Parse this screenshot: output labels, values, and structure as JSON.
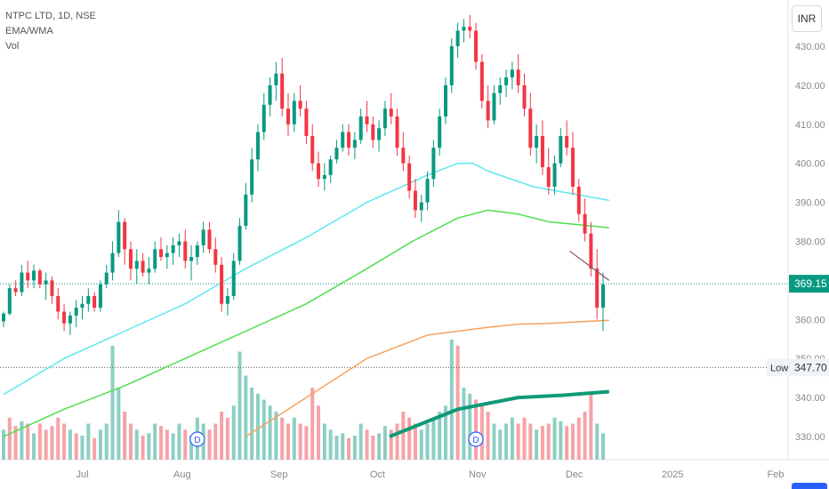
{
  "chart_data": {
    "type": "candlestick",
    "legend": {
      "symbol": "NTPC LTD, 1D, NSE",
      "indicator": "EMA/WMA",
      "volume": "Vol"
    },
    "currency": "INR",
    "y_ticks": [
      330,
      340,
      350,
      360,
      370,
      380,
      390,
      400,
      410,
      420,
      430
    ],
    "ylim": [
      326,
      438
    ],
    "x_ticks": [
      "Jul",
      "Aug",
      "Sep",
      "Oct",
      "Nov",
      "Dec",
      "2025",
      "Feb"
    ],
    "last_price": {
      "value": 369.15,
      "label": "369.15",
      "color": "#089981"
    },
    "low_marker": {
      "tag": "Low",
      "value": 347.7,
      "label": "347.70"
    },
    "colors": {
      "up": "#089981",
      "down": "#f23645",
      "vol_up": "#8ccfc3",
      "vol_down": "#f5a3a8",
      "ema_cyan": "#5ee8ec",
      "ema_green": "#4ce04c",
      "ema_orange": "#f7a25c",
      "wma_teal": "#0f9a76",
      "trendline": "#8b5a70"
    },
    "trendline": {
      "from": [
        374,
        377.5
      ],
      "to": [
        400,
        370
      ]
    },
    "dividend_markers": [
      {
        "label": "D",
        "index": 128
      },
      {
        "label": "D",
        "index": 312
      }
    ],
    "series": [
      {
        "name": "EMA cyan",
        "points": [
          [
            0,
            340.8
          ],
          [
            40,
            350
          ],
          [
            80,
            357
          ],
          [
            120,
            364
          ],
          [
            160,
            373
          ],
          [
            200,
            381
          ],
          [
            240,
            390
          ],
          [
            280,
            397
          ],
          [
            300,
            400
          ],
          [
            310,
            400
          ],
          [
            320,
            398
          ],
          [
            350,
            394
          ],
          [
            400,
            390.5
          ]
        ]
      },
      {
        "name": "EMA green",
        "points": [
          [
            0,
            330
          ],
          [
            40,
            337
          ],
          [
            80,
            343
          ],
          [
            120,
            350
          ],
          [
            160,
            357
          ],
          [
            200,
            364
          ],
          [
            240,
            373
          ],
          [
            270,
            380
          ],
          [
            300,
            386
          ],
          [
            320,
            388
          ],
          [
            340,
            387
          ],
          [
            360,
            385
          ],
          [
            400,
            383.5
          ]
        ]
      },
      {
        "name": "EMA orange",
        "points": [
          [
            160,
            330
          ],
          [
            200,
            340
          ],
          [
            240,
            350
          ],
          [
            280,
            356
          ],
          [
            320,
            358
          ],
          [
            340,
            358.8
          ],
          [
            360,
            359
          ],
          [
            400,
            359.8
          ]
        ]
      },
      {
        "name": "WMA teal",
        "points": [
          [
            255,
            330
          ],
          [
            300,
            337
          ],
          [
            340,
            340
          ],
          [
            370,
            340.6
          ],
          [
            400,
            341.5
          ]
        ]
      }
    ],
    "candles": [
      [
        0,
        359.5,
        362,
        358,
        361.5
      ],
      [
        4,
        361.5,
        369,
        361,
        368
      ],
      [
        8,
        368,
        370,
        366,
        367
      ],
      [
        12,
        367,
        374,
        366,
        372
      ],
      [
        16,
        372,
        375,
        368,
        370
      ],
      [
        20,
        370,
        374,
        368,
        372.5
      ],
      [
        24,
        372.5,
        373,
        368,
        369
      ],
      [
        28,
        369,
        372,
        365,
        370
      ],
      [
        32,
        370,
        371,
        364,
        366
      ],
      [
        36,
        366,
        368,
        360,
        362
      ],
      [
        40,
        362,
        364,
        357,
        359
      ],
      [
        44,
        359,
        362,
        356,
        361
      ],
      [
        48,
        361,
        365,
        358,
        363
      ],
      [
        52,
        363,
        366,
        360,
        364
      ],
      [
        56,
        364,
        368,
        362,
        366
      ],
      [
        60,
        366,
        367,
        362,
        363
      ],
      [
        64,
        363,
        370,
        362,
        369
      ],
      [
        68,
        369,
        374,
        368,
        372
      ],
      [
        72,
        372,
        380,
        370,
        377
      ],
      [
        76,
        377,
        388,
        376,
        385
      ],
      [
        80,
        385,
        386,
        374,
        378
      ],
      [
        84,
        378,
        380,
        370,
        373
      ],
      [
        88,
        373,
        378,
        369,
        375
      ],
      [
        92,
        375,
        377,
        371,
        372
      ],
      [
        96,
        372,
        376,
        369,
        373
      ],
      [
        100,
        373,
        380,
        372,
        378
      ],
      [
        104,
        378,
        381,
        375,
        376
      ],
      [
        108,
        376,
        379,
        373,
        377
      ],
      [
        112,
        377,
        381,
        374,
        379
      ],
      [
        116,
        379,
        382,
        376,
        380
      ],
      [
        120,
        380,
        383,
        373,
        375
      ],
      [
        124,
        375,
        379,
        370,
        376
      ],
      [
        128,
        376,
        380,
        374,
        379
      ],
      [
        132,
        379,
        385,
        377,
        383
      ],
      [
        136,
        383,
        385,
        377,
        378
      ],
      [
        140,
        378,
        381,
        372,
        374
      ],
      [
        144,
        374,
        376,
        362,
        364
      ],
      [
        148,
        364,
        368,
        361,
        366
      ],
      [
        152,
        366,
        377,
        365,
        375
      ],
      [
        156,
        375,
        386,
        374,
        384
      ],
      [
        160,
        384,
        395,
        383,
        392
      ],
      [
        164,
        392,
        404,
        390,
        401
      ],
      [
        168,
        401,
        410,
        398,
        408
      ],
      [
        172,
        408,
        418,
        406,
        415
      ],
      [
        176,
        415,
        422,
        412,
        420
      ],
      [
        180,
        420,
        426,
        416,
        423
      ],
      [
        184,
        423,
        427,
        412,
        414
      ],
      [
        188,
        414,
        418,
        407,
        410
      ],
      [
        192,
        410,
        418,
        408,
        416
      ],
      [
        196,
        416,
        420,
        412,
        414
      ],
      [
        200,
        414,
        416,
        405,
        407
      ],
      [
        204,
        407,
        410,
        398,
        400
      ],
      [
        208,
        400,
        403,
        394,
        396
      ],
      [
        212,
        396,
        400,
        393,
        397
      ],
      [
        216,
        397,
        402,
        395,
        401
      ],
      [
        220,
        401,
        406,
        400,
        404
      ],
      [
        224,
        404,
        410,
        403,
        408
      ],
      [
        228,
        408,
        410,
        402,
        404
      ],
      [
        232,
        404,
        408,
        401,
        406
      ],
      [
        236,
        406,
        414,
        405,
        412
      ],
      [
        240,
        412,
        416,
        408,
        410
      ],
      [
        244,
        410,
        412,
        404,
        406
      ],
      [
        248,
        406,
        411,
        403,
        409
      ],
      [
        252,
        409,
        416,
        407,
        414
      ],
      [
        256,
        414,
        418,
        410,
        412
      ],
      [
        260,
        412,
        414,
        402,
        404
      ],
      [
        264,
        404,
        408,
        398,
        400
      ],
      [
        268,
        400,
        402,
        391,
        393
      ],
      [
        272,
        393,
        396,
        386,
        388
      ],
      [
        276,
        388,
        392,
        385,
        390
      ],
      [
        280,
        390,
        398,
        388,
        396
      ],
      [
        284,
        396,
        406,
        394,
        404
      ],
      [
        288,
        404,
        414,
        402,
        412
      ],
      [
        292,
        412,
        422,
        410,
        420
      ],
      [
        296,
        420,
        432,
        418,
        430
      ],
      [
        300,
        430,
        436,
        427,
        434
      ],
      [
        304,
        434,
        437,
        431,
        435
      ],
      [
        308,
        435,
        438,
        432,
        434
      ],
      [
        312,
        434,
        436,
        424,
        426
      ],
      [
        316,
        426,
        428,
        414,
        416
      ],
      [
        320,
        416,
        420,
        409,
        411
      ],
      [
        324,
        411,
        420,
        410,
        418
      ],
      [
        328,
        418,
        422,
        415,
        420
      ],
      [
        332,
        420,
        424,
        417,
        422
      ],
      [
        336,
        422,
        426,
        419,
        424
      ],
      [
        340,
        424,
        428,
        418,
        420
      ],
      [
        344,
        420,
        423,
        412,
        414
      ],
      [
        348,
        414,
        418,
        402,
        404
      ],
      [
        352,
        404,
        410,
        400,
        407
      ],
      [
        356,
        407,
        411,
        397,
        399
      ],
      [
        360,
        399,
        404,
        392,
        394
      ],
      [
        364,
        394,
        402,
        392,
        400
      ],
      [
        368,
        400,
        409,
        399,
        407
      ],
      [
        372,
        407,
        411,
        402,
        404
      ],
      [
        376,
        404,
        408,
        392,
        394
      ],
      [
        380,
        394,
        396,
        385,
        387
      ],
      [
        384,
        387,
        391,
        380,
        382
      ],
      [
        388,
        382,
        385,
        371,
        373
      ],
      [
        392,
        373,
        378,
        360,
        363
      ],
      [
        396,
        363,
        372,
        357,
        369
      ]
    ],
    "candle_x_map": {
      "left": 4,
      "right": 678,
      "max_index": 396
    },
    "volumes": [
      [
        0,
        0.25,
        1
      ],
      [
        4,
        0.35,
        0
      ],
      [
        8,
        0.28,
        0
      ],
      [
        12,
        0.32,
        1
      ],
      [
        16,
        0.3,
        0
      ],
      [
        20,
        0.22,
        1
      ],
      [
        24,
        0.3,
        0
      ],
      [
        28,
        0.25,
        0
      ],
      [
        32,
        0.28,
        0
      ],
      [
        36,
        0.35,
        0
      ],
      [
        40,
        0.3,
        0
      ],
      [
        44,
        0.25,
        1
      ],
      [
        48,
        0.22,
        0
      ],
      [
        52,
        0.2,
        1
      ],
      [
        56,
        0.3,
        1
      ],
      [
        60,
        0.18,
        0
      ],
      [
        64,
        0.25,
        1
      ],
      [
        68,
        0.3,
        1
      ],
      [
        72,
        0.95,
        1
      ],
      [
        76,
        0.6,
        1
      ],
      [
        80,
        0.4,
        0
      ],
      [
        84,
        0.3,
        0
      ],
      [
        88,
        0.25,
        1
      ],
      [
        92,
        0.2,
        0
      ],
      [
        96,
        0.22,
        1
      ],
      [
        100,
        0.3,
        1
      ],
      [
        104,
        0.28,
        0
      ],
      [
        108,
        0.25,
        0
      ],
      [
        112,
        0.22,
        1
      ],
      [
        116,
        0.3,
        1
      ],
      [
        120,
        0.25,
        0
      ],
      [
        124,
        0.2,
        1
      ],
      [
        128,
        0.35,
        1
      ],
      [
        132,
        0.3,
        1
      ],
      [
        136,
        0.25,
        0
      ],
      [
        140,
        0.3,
        0
      ],
      [
        144,
        0.4,
        0
      ],
      [
        148,
        0.35,
        0
      ],
      [
        152,
        0.45,
        1
      ],
      [
        156,
        0.9,
        1
      ],
      [
        160,
        0.7,
        1
      ],
      [
        164,
        0.6,
        1
      ],
      [
        168,
        0.55,
        1
      ],
      [
        172,
        0.5,
        1
      ],
      [
        176,
        0.45,
        1
      ],
      [
        180,
        0.4,
        1
      ],
      [
        184,
        0.35,
        0
      ],
      [
        188,
        0.3,
        0
      ],
      [
        192,
        0.35,
        1
      ],
      [
        196,
        0.3,
        0
      ],
      [
        200,
        0.28,
        0
      ],
      [
        204,
        0.6,
        0
      ],
      [
        208,
        0.45,
        0
      ],
      [
        212,
        0.3,
        1
      ],
      [
        216,
        0.25,
        1
      ],
      [
        220,
        0.2,
        1
      ],
      [
        224,
        0.22,
        1
      ],
      [
        228,
        0.18,
        0
      ],
      [
        232,
        0.2,
        1
      ],
      [
        236,
        0.3,
        1
      ],
      [
        240,
        0.25,
        0
      ],
      [
        244,
        0.2,
        0
      ],
      [
        248,
        0.22,
        1
      ],
      [
        252,
        0.28,
        1
      ],
      [
        256,
        0.25,
        0
      ],
      [
        260,
        0.3,
        0
      ],
      [
        264,
        0.4,
        0
      ],
      [
        268,
        0.35,
        0
      ],
      [
        272,
        0.3,
        0
      ],
      [
        276,
        0.25,
        1
      ],
      [
        280,
        0.3,
        1
      ],
      [
        284,
        0.35,
        1
      ],
      [
        288,
        0.4,
        1
      ],
      [
        292,
        0.45,
        1
      ],
      [
        296,
        1.0,
        1
      ],
      [
        300,
        0.95,
        0
      ],
      [
        304,
        0.6,
        1
      ],
      [
        308,
        0.55,
        1
      ],
      [
        312,
        0.5,
        0
      ],
      [
        316,
        0.45,
        0
      ],
      [
        320,
        0.4,
        0
      ],
      [
        324,
        0.3,
        1
      ],
      [
        328,
        0.25,
        1
      ],
      [
        332,
        0.3,
        1
      ],
      [
        336,
        0.35,
        1
      ],
      [
        340,
        0.3,
        0
      ],
      [
        344,
        0.35,
        0
      ],
      [
        348,
        0.3,
        0
      ],
      [
        352,
        0.25,
        1
      ],
      [
        356,
        0.28,
        0
      ],
      [
        360,
        0.3,
        0
      ],
      [
        364,
        0.35,
        1
      ],
      [
        368,
        0.32,
        1
      ],
      [
        372,
        0.28,
        0
      ],
      [
        376,
        0.3,
        0
      ],
      [
        380,
        0.35,
        0
      ],
      [
        384,
        0.4,
        0
      ],
      [
        388,
        0.55,
        0
      ],
      [
        392,
        0.3,
        1
      ],
      [
        396,
        0.22,
        1
      ]
    ]
  }
}
